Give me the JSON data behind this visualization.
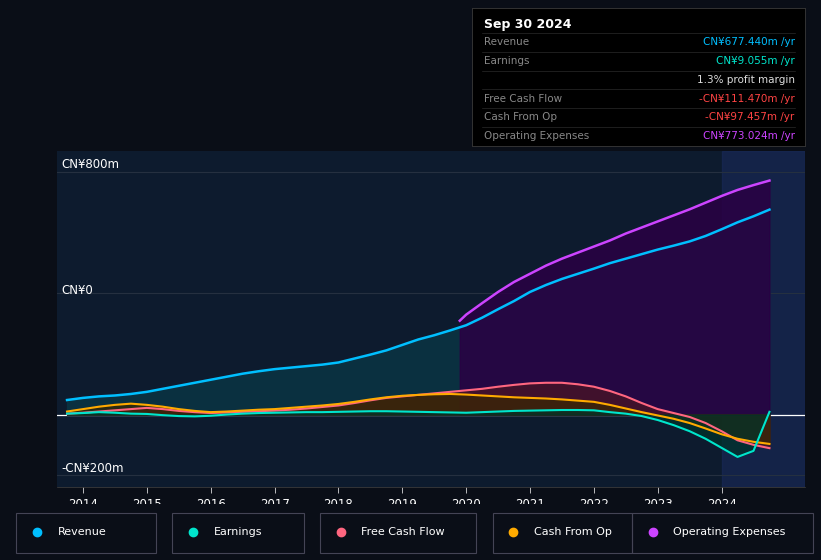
{
  "bg_color": "#0a0e17",
  "plot_bg_color": "#0d1b2e",
  "ylabel_800": "CN¥800m",
  "ylabel_0": "CN¥0",
  "ylabel_neg200": "-CN¥200m",
  "x_ticks": [
    2014,
    2015,
    2016,
    2017,
    2018,
    2019,
    2020,
    2021,
    2022,
    2023,
    2024
  ],
  "ylim": [
    -240,
    870
  ],
  "xlim": [
    2013.6,
    2025.3
  ],
  "revenue": {
    "x": [
      2013.75,
      2014.0,
      2014.25,
      2014.5,
      2014.75,
      2015.0,
      2015.25,
      2015.5,
      2015.75,
      2016.0,
      2016.25,
      2016.5,
      2016.75,
      2017.0,
      2017.25,
      2017.5,
      2017.75,
      2018.0,
      2018.25,
      2018.5,
      2018.75,
      2019.0,
      2019.25,
      2019.5,
      2019.75,
      2020.0,
      2020.25,
      2020.5,
      2020.75,
      2021.0,
      2021.25,
      2021.5,
      2021.75,
      2022.0,
      2022.25,
      2022.5,
      2022.75,
      2023.0,
      2023.25,
      2023.5,
      2023.75,
      2024.0,
      2024.25,
      2024.5,
      2024.75
    ],
    "y": [
      48,
      55,
      60,
      63,
      68,
      75,
      85,
      95,
      105,
      115,
      125,
      135,
      143,
      150,
      155,
      160,
      165,
      172,
      185,
      198,
      212,
      230,
      248,
      262,
      278,
      295,
      320,
      348,
      375,
      405,
      428,
      448,
      465,
      482,
      500,
      515,
      530,
      545,
      558,
      572,
      590,
      612,
      635,
      655,
      677
    ],
    "color": "#00bfff",
    "fill_color": "#0a3040"
  },
  "earnings": {
    "x": [
      2013.75,
      2014.0,
      2014.25,
      2014.5,
      2014.75,
      2015.0,
      2015.25,
      2015.5,
      2015.75,
      2016.0,
      2016.25,
      2016.5,
      2016.75,
      2017.0,
      2017.25,
      2017.5,
      2017.75,
      2018.0,
      2018.25,
      2018.5,
      2018.75,
      2019.0,
      2019.25,
      2019.5,
      2019.75,
      2020.0,
      2020.25,
      2020.5,
      2020.75,
      2021.0,
      2021.25,
      2021.5,
      2021.75,
      2022.0,
      2022.25,
      2022.5,
      2022.75,
      2023.0,
      2023.25,
      2023.5,
      2023.75,
      2024.0,
      2024.25,
      2024.5,
      2024.75
    ],
    "y": [
      3,
      5,
      8,
      6,
      3,
      2,
      -2,
      -5,
      -6,
      -4,
      0,
      3,
      5,
      6,
      7,
      8,
      8,
      9,
      10,
      11,
      11,
      10,
      9,
      8,
      7,
      6,
      8,
      10,
      12,
      13,
      14,
      15,
      15,
      14,
      8,
      3,
      -5,
      -18,
      -35,
      -55,
      -80,
      -110,
      -140,
      -120,
      9
    ],
    "color": "#00e5cc",
    "fill_color": "#00332a"
  },
  "free_cash_flow": {
    "x": [
      2013.75,
      2014.0,
      2014.25,
      2014.5,
      2014.75,
      2015.0,
      2015.25,
      2015.5,
      2015.75,
      2016.0,
      2016.25,
      2016.5,
      2016.75,
      2017.0,
      2017.25,
      2017.5,
      2017.75,
      2018.0,
      2018.25,
      2018.5,
      2018.75,
      2019.0,
      2019.25,
      2019.5,
      2019.75,
      2020.0,
      2020.25,
      2020.5,
      2020.75,
      2021.0,
      2021.25,
      2021.5,
      2021.75,
      2022.0,
      2022.25,
      2022.5,
      2022.75,
      2023.0,
      2023.25,
      2023.5,
      2023.75,
      2024.0,
      2024.25,
      2024.5,
      2024.75
    ],
    "y": [
      3,
      6,
      10,
      14,
      18,
      22,
      18,
      12,
      8,
      5,
      7,
      9,
      11,
      13,
      16,
      20,
      25,
      30,
      38,
      47,
      55,
      60,
      65,
      70,
      75,
      80,
      85,
      92,
      98,
      103,
      105,
      105,
      100,
      92,
      78,
      60,
      38,
      18,
      5,
      -8,
      -28,
      -55,
      -85,
      -100,
      -111
    ],
    "color": "#ff6680",
    "fill_color": "#4a1525"
  },
  "cash_from_op": {
    "x": [
      2013.75,
      2014.0,
      2014.25,
      2014.5,
      2014.75,
      2015.0,
      2015.25,
      2015.5,
      2015.75,
      2016.0,
      2016.25,
      2016.5,
      2016.75,
      2017.0,
      2017.25,
      2017.5,
      2017.75,
      2018.0,
      2018.25,
      2018.5,
      2018.75,
      2019.0,
      2019.25,
      2019.5,
      2019.75,
      2020.0,
      2020.25,
      2020.5,
      2020.75,
      2021.0,
      2021.25,
      2021.5,
      2021.75,
      2022.0,
      2022.25,
      2022.5,
      2022.75,
      2023.0,
      2023.25,
      2023.5,
      2023.75,
      2024.0,
      2024.25,
      2024.5,
      2024.75
    ],
    "y": [
      10,
      18,
      26,
      32,
      36,
      32,
      26,
      18,
      12,
      8,
      10,
      13,
      16,
      18,
      22,
      26,
      30,
      35,
      42,
      50,
      57,
      62,
      65,
      67,
      68,
      66,
      63,
      60,
      57,
      55,
      53,
      50,
      46,
      42,
      32,
      20,
      8,
      -3,
      -14,
      -28,
      -46,
      -65,
      -80,
      -90,
      -97
    ],
    "color": "#ffaa00",
    "fill_color": "#3a2800"
  },
  "op_expenses": {
    "x": [
      2019.9,
      2020.0,
      2020.25,
      2020.5,
      2020.75,
      2021.0,
      2021.25,
      2021.5,
      2021.75,
      2022.0,
      2022.25,
      2022.5,
      2022.75,
      2023.0,
      2023.25,
      2023.5,
      2023.75,
      2024.0,
      2024.25,
      2024.5,
      2024.75
    ],
    "y": [
      310,
      330,
      368,
      405,
      438,
      465,
      492,
      515,
      535,
      555,
      575,
      598,
      618,
      638,
      658,
      678,
      700,
      722,
      742,
      758,
      773
    ],
    "color": "#cc44ff",
    "fill_color": "#2a0044"
  },
  "legend": [
    {
      "label": "Revenue",
      "color": "#00bfff"
    },
    {
      "label": "Earnings",
      "color": "#00e5cc"
    },
    {
      "label": "Free Cash Flow",
      "color": "#ff6680"
    },
    {
      "label": "Cash From Op",
      "color": "#ffaa00"
    },
    {
      "label": "Operating Expenses",
      "color": "#cc44ff"
    }
  ],
  "grid_color": "#253040",
  "grid_0_color": "#ffffff",
  "highlight_x": 2024.0,
  "highlight_color": "#1a2a5a",
  "infobox": {
    "title": "Sep 30 2024",
    "title_color": "#ffffff",
    "bg": "#000000",
    "border_color": "#333333",
    "rows": [
      {
        "label": "Revenue",
        "value": "CN¥677.440m /yr",
        "label_color": "#888888",
        "value_color": "#00bfff"
      },
      {
        "label": "Earnings",
        "value": "CN¥9.055m /yr",
        "label_color": "#888888",
        "value_color": "#00e5cc"
      },
      {
        "label": "",
        "value": "1.3% profit margin",
        "label_color": "#888888",
        "value_color": "#dddddd"
      },
      {
        "label": "Free Cash Flow",
        "value": "-CN¥111.470m /yr",
        "label_color": "#888888",
        "value_color": "#ff4444"
      },
      {
        "label": "Cash From Op",
        "value": "-CN¥97.457m /yr",
        "label_color": "#888888",
        "value_color": "#ff4444"
      },
      {
        "label": "Operating Expenses",
        "value": "CN¥773.024m /yr",
        "label_color": "#888888",
        "value_color": "#cc44ff"
      }
    ]
  }
}
